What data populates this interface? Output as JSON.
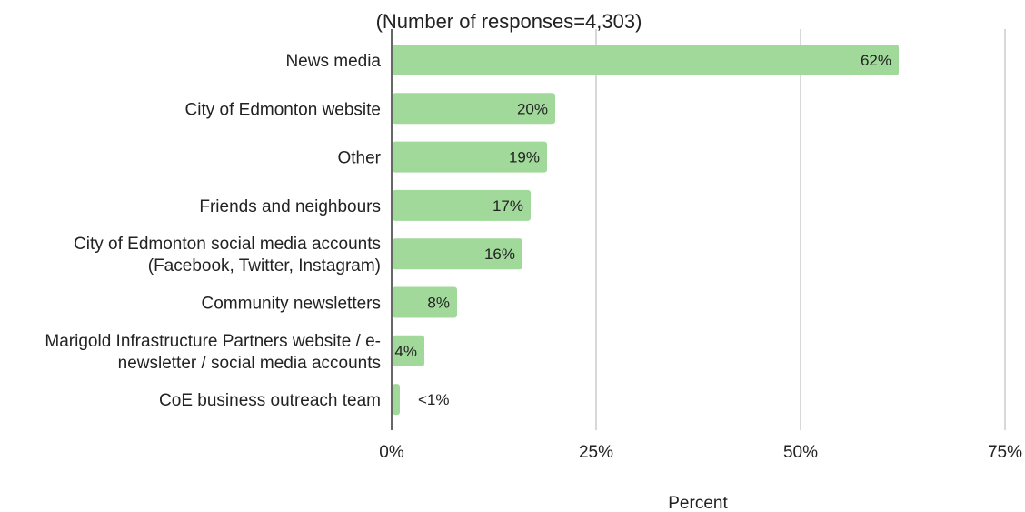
{
  "chart_data": {
    "type": "bar",
    "orientation": "horizontal",
    "title": "",
    "subtitle": "(Number of responses=4,303)",
    "xlabel": "Percent",
    "ylabel": "",
    "categories": [
      [
        "News media"
      ],
      [
        "City of Edmonton website"
      ],
      [
        "Other"
      ],
      [
        "Friends and neighbours"
      ],
      [
        "City of Edmonton social media accounts",
        "(Facebook, Twitter, Instagram)"
      ],
      [
        "Community newsletters"
      ],
      [
        "Marigold Infrastructure Partners website / e-",
        "newsletter / social media accounts"
      ],
      [
        "CoE business outreach team"
      ]
    ],
    "values": [
      62,
      20,
      19,
      17,
      16,
      8,
      4,
      1
    ],
    "data_labels": [
      "62%",
      "20%",
      "19%",
      "17%",
      "16%",
      "8%",
      "4%",
      "<1%"
    ],
    "xlim": [
      0,
      75
    ],
    "xticks": [
      0,
      25,
      50,
      75
    ],
    "xtick_labels": [
      "0%",
      "25%",
      "50%",
      "75%"
    ],
    "grid": true,
    "legend": "none",
    "bar_color": "#a1d99b",
    "grid_color": "#cccccc",
    "axis_color": "#333333"
  }
}
